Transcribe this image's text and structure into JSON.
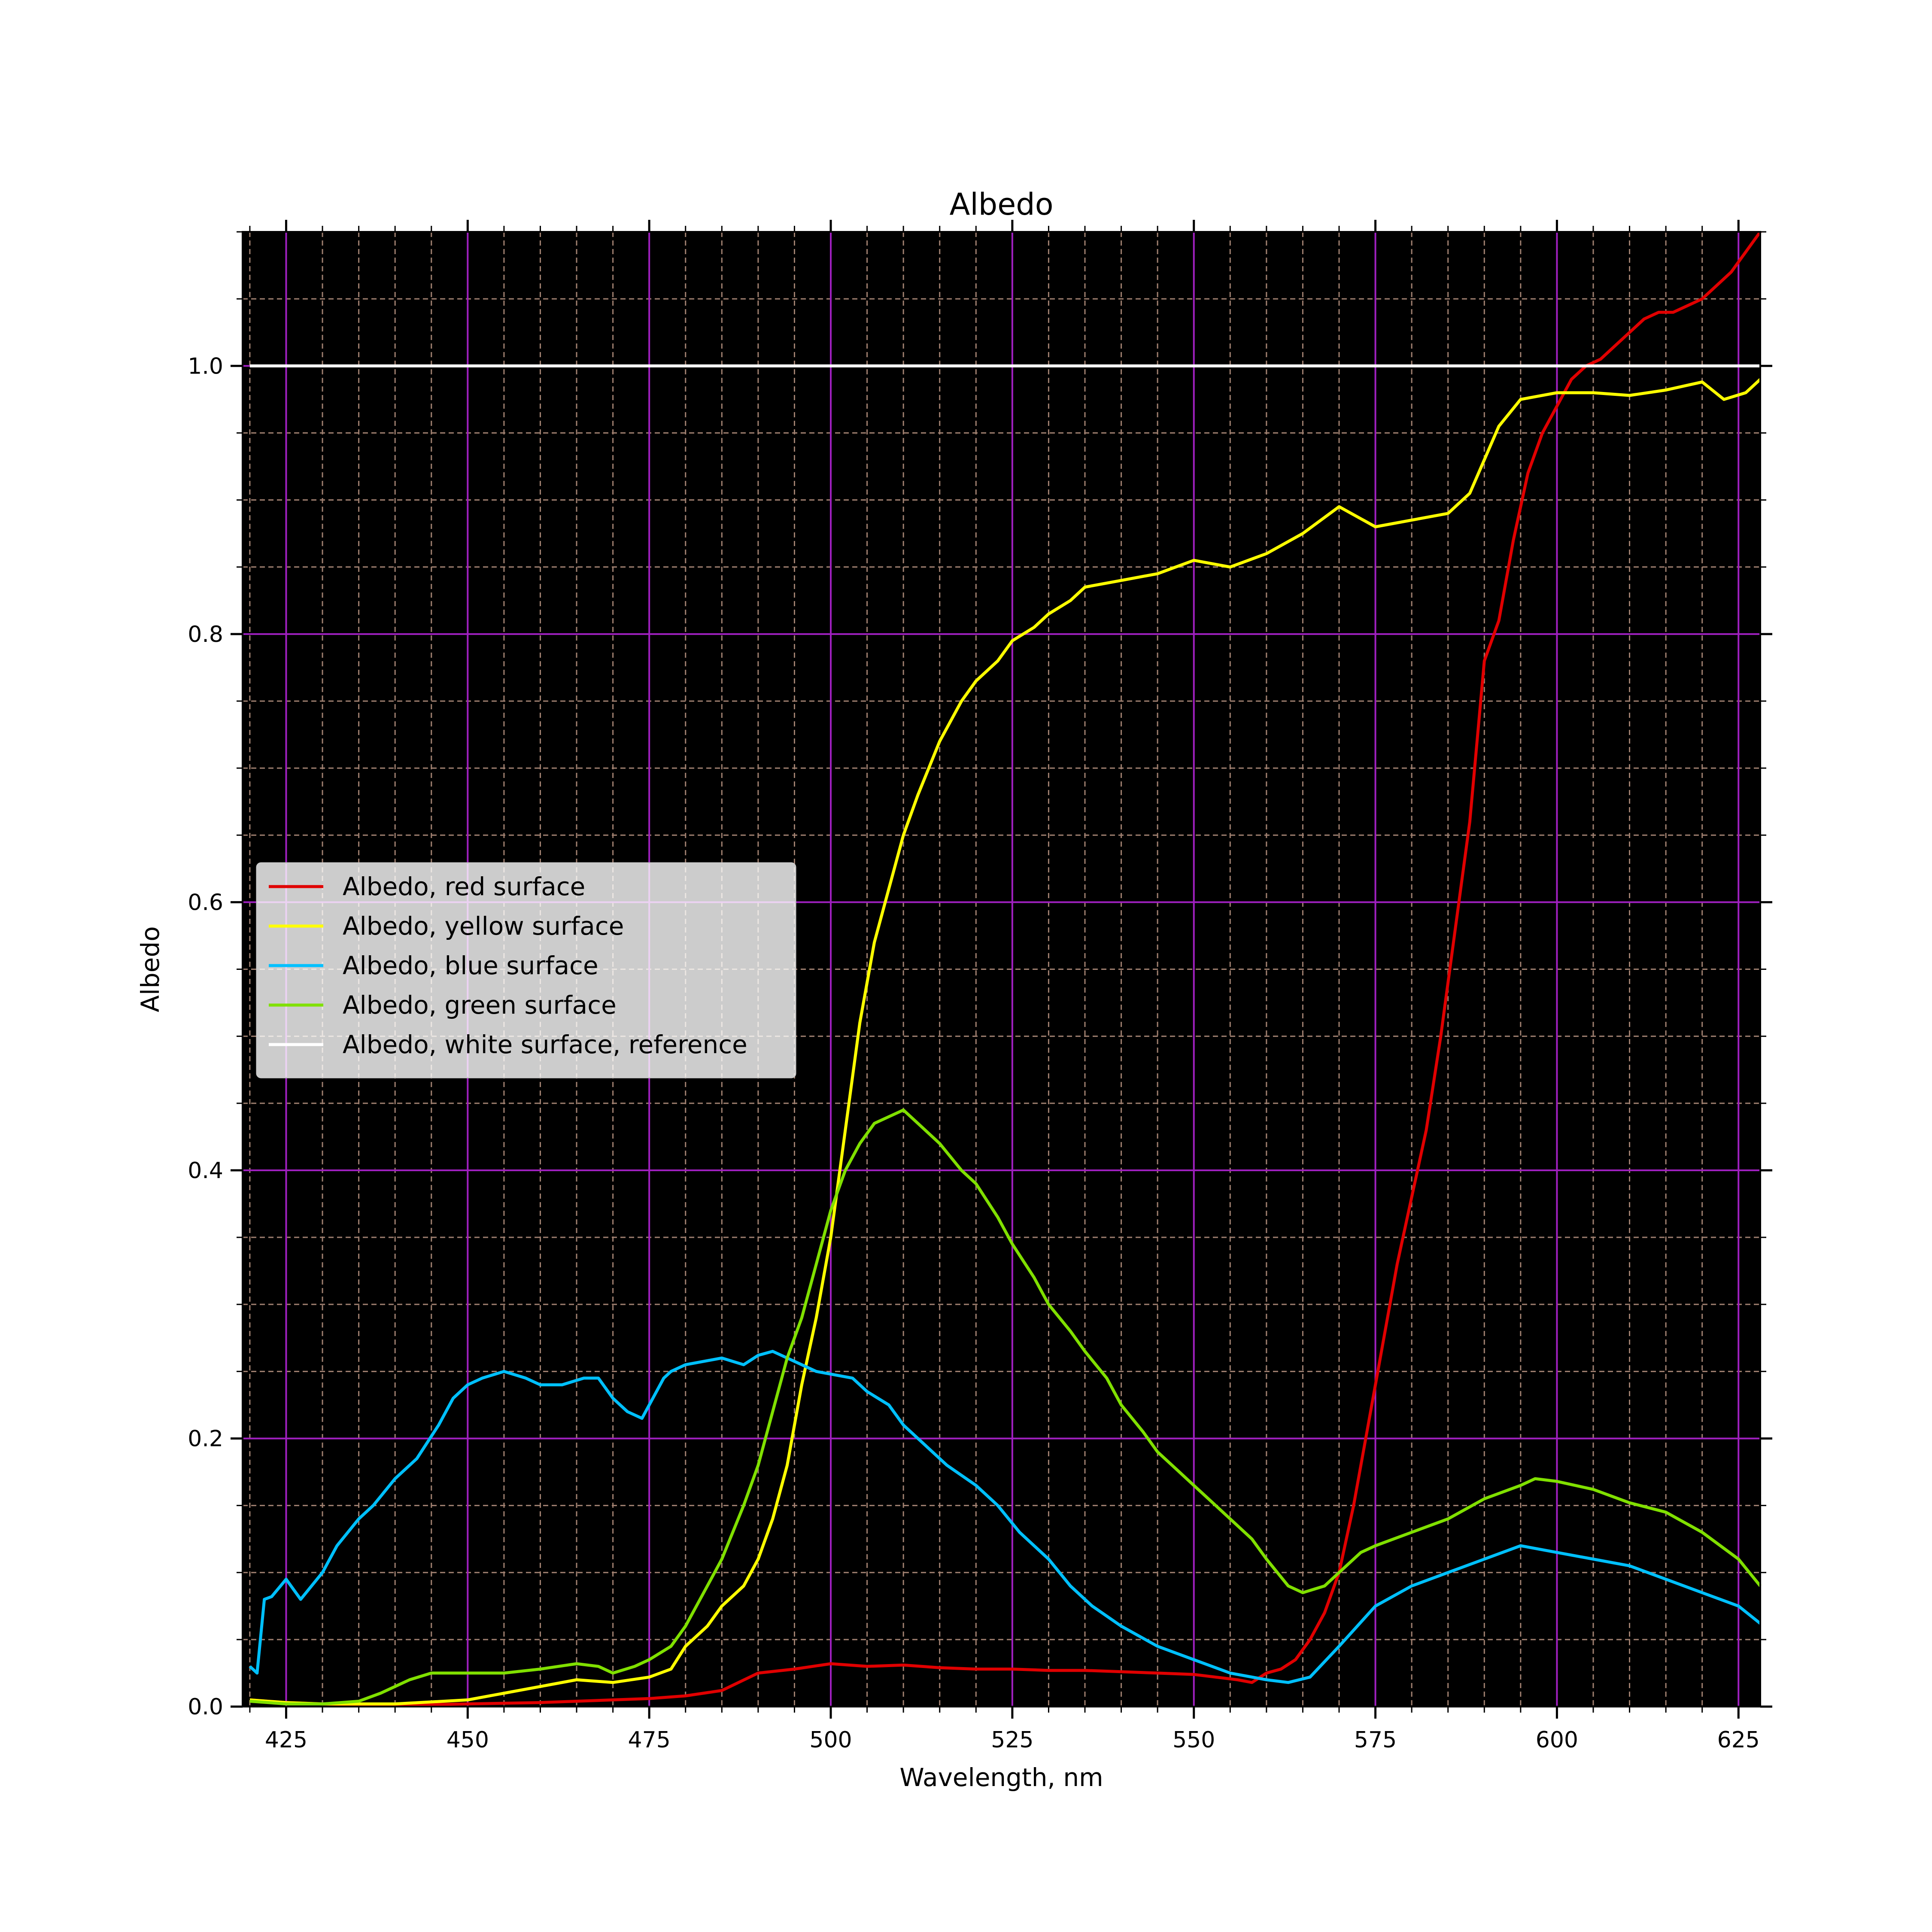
{
  "chart_data": {
    "type": "line",
    "title": "Albedo",
    "xlabel": "Wavelength, nm",
    "ylabel": "Albedo",
    "xlim": [
      419,
      628
    ],
    "ylim": [
      0.0,
      1.1
    ],
    "xticks": [
      {
        "v": 425,
        "label": "425"
      },
      {
        "v": 450,
        "label": "450"
      },
      {
        "v": 475,
        "label": "475"
      },
      {
        "v": 500,
        "label": "500"
      },
      {
        "v": 525,
        "label": "525"
      },
      {
        "v": 550,
        "label": "550"
      },
      {
        "v": 575,
        "label": "575"
      },
      {
        "v": 600,
        "label": "600"
      },
      {
        "v": 625,
        "label": "625"
      }
    ],
    "yticks": [
      {
        "v": 0.0,
        "label": "0.0"
      },
      {
        "v": 0.2,
        "label": "0.2"
      },
      {
        "v": 0.4,
        "label": "0.4"
      },
      {
        "v": 0.6,
        "label": "0.6"
      },
      {
        "v": 0.8,
        "label": "0.8"
      },
      {
        "v": 1.0,
        "label": "1.0"
      }
    ],
    "x_minor_step": 5,
    "y_minor_step": 0.05,
    "grid": true,
    "plot_background": "#000000",
    "major_grid_color": "#a020c0",
    "minor_grid_color": "#a08070",
    "legend_position": "center-left",
    "series": [
      {
        "name": "Albedo, red surface",
        "color": "#e00000",
        "x": [
          420,
          425,
          430,
          440,
          450,
          460,
          465,
          470,
          475,
          480,
          485,
          490,
          495,
          500,
          505,
          510,
          515,
          520,
          525,
          530,
          535,
          540,
          545,
          550,
          553,
          556,
          558,
          560,
          562,
          564,
          566,
          568,
          570,
          572,
          574,
          576,
          578,
          580,
          582,
          584,
          586,
          588,
          590,
          592,
          594,
          596,
          598,
          600,
          602,
          604,
          606,
          608,
          610,
          612,
          614,
          616,
          618,
          620,
          622,
          624,
          626,
          628
        ],
        "y": [
          0.005,
          0.003,
          0.002,
          0.001,
          0.002,
          0.003,
          0.004,
          0.005,
          0.006,
          0.008,
          0.012,
          0.025,
          0.028,
          0.032,
          0.03,
          0.031,
          0.029,
          0.028,
          0.028,
          0.027,
          0.027,
          0.026,
          0.025,
          0.024,
          0.022,
          0.02,
          0.018,
          0.025,
          0.028,
          0.035,
          0.05,
          0.07,
          0.1,
          0.15,
          0.21,
          0.27,
          0.33,
          0.38,
          0.43,
          0.5,
          0.58,
          0.66,
          0.78,
          0.81,
          0.87,
          0.92,
          0.95,
          0.97,
          0.99,
          1.0,
          1.005,
          1.015,
          1.025,
          1.035,
          1.04,
          1.04,
          1.045,
          1.05,
          1.06,
          1.07,
          1.085,
          1.1
        ]
      },
      {
        "name": "Albedo, yellow surface",
        "color": "#ffff00",
        "x": [
          420,
          425,
          430,
          440,
          450,
          455,
          460,
          465,
          470,
          475,
          478,
          480,
          483,
          485,
          488,
          490,
          492,
          494,
          496,
          498,
          500,
          502,
          504,
          506,
          508,
          510,
          512,
          515,
          518,
          520,
          523,
          525,
          528,
          530,
          533,
          535,
          540,
          545,
          550,
          555,
          560,
          565,
          570,
          575,
          580,
          585,
          588,
          590,
          592,
          595,
          600,
          605,
          610,
          615,
          620,
          623,
          626,
          628
        ],
        "y": [
          0.005,
          0.003,
          0.002,
          0.002,
          0.005,
          0.01,
          0.015,
          0.02,
          0.018,
          0.022,
          0.028,
          0.045,
          0.06,
          0.075,
          0.09,
          0.11,
          0.14,
          0.18,
          0.24,
          0.29,
          0.35,
          0.43,
          0.51,
          0.57,
          0.61,
          0.65,
          0.68,
          0.72,
          0.75,
          0.765,
          0.78,
          0.795,
          0.805,
          0.815,
          0.825,
          0.835,
          0.84,
          0.845,
          0.855,
          0.85,
          0.86,
          0.875,
          0.895,
          0.88,
          0.885,
          0.89,
          0.905,
          0.93,
          0.955,
          0.975,
          0.98,
          0.98,
          0.978,
          0.982,
          0.988,
          0.975,
          0.98,
          0.99
        ]
      },
      {
        "name": "Albedo, blue surface",
        "color": "#00c0ff",
        "x": [
          420,
          421,
          422,
          423,
          425,
          427,
          430,
          432,
          435,
          437,
          440,
          443,
          446,
          448,
          450,
          452,
          455,
          458,
          460,
          463,
          466,
          468,
          470,
          472,
          474,
          475,
          477,
          478,
          480,
          483,
          485,
          488,
          490,
          492,
          494,
          496,
          498,
          500,
          503,
          505,
          508,
          510,
          513,
          516,
          520,
          523,
          526,
          530,
          533,
          536,
          540,
          545,
          550,
          555,
          560,
          563,
          566,
          570,
          575,
          580,
          585,
          590,
          595,
          600,
          605,
          610,
          615,
          620,
          625,
          628
        ],
        "y": [
          0.03,
          0.025,
          0.08,
          0.082,
          0.095,
          0.08,
          0.1,
          0.12,
          0.14,
          0.15,
          0.17,
          0.185,
          0.21,
          0.23,
          0.24,
          0.245,
          0.25,
          0.245,
          0.24,
          0.24,
          0.245,
          0.245,
          0.23,
          0.22,
          0.215,
          0.225,
          0.245,
          0.25,
          0.255,
          0.258,
          0.26,
          0.255,
          0.262,
          0.265,
          0.26,
          0.255,
          0.25,
          0.248,
          0.245,
          0.235,
          0.225,
          0.21,
          0.195,
          0.18,
          0.165,
          0.15,
          0.13,
          0.11,
          0.09,
          0.075,
          0.06,
          0.045,
          0.035,
          0.025,
          0.02,
          0.018,
          0.022,
          0.045,
          0.075,
          0.09,
          0.1,
          0.11,
          0.12,
          0.115,
          0.11,
          0.105,
          0.095,
          0.085,
          0.075,
          0.062
        ]
      },
      {
        "name": "Albedo, green surface",
        "color": "#80e000",
        "x": [
          420,
          425,
          430,
          435,
          438,
          440,
          442,
          445,
          448,
          450,
          455,
          460,
          465,
          468,
          470,
          473,
          475,
          478,
          480,
          483,
          485,
          488,
          490,
          492,
          494,
          496,
          498,
          500,
          502,
          504,
          506,
          508,
          510,
          512,
          515,
          518,
          520,
          523,
          525,
          528,
          530,
          533,
          535,
          538,
          540,
          543,
          545,
          548,
          550,
          553,
          555,
          558,
          560,
          563,
          565,
          568,
          570,
          573,
          575,
          580,
          585,
          590,
          595,
          597,
          600,
          605,
          610,
          615,
          620,
          625,
          628
        ],
        "y": [
          0.004,
          0.002,
          0.002,
          0.004,
          0.01,
          0.015,
          0.02,
          0.025,
          0.025,
          0.025,
          0.025,
          0.028,
          0.032,
          0.03,
          0.025,
          0.03,
          0.035,
          0.045,
          0.06,
          0.09,
          0.11,
          0.15,
          0.18,
          0.22,
          0.26,
          0.29,
          0.33,
          0.37,
          0.4,
          0.42,
          0.435,
          0.44,
          0.445,
          0.435,
          0.42,
          0.4,
          0.39,
          0.365,
          0.345,
          0.32,
          0.3,
          0.28,
          0.265,
          0.245,
          0.225,
          0.205,
          0.19,
          0.175,
          0.165,
          0.15,
          0.14,
          0.125,
          0.11,
          0.09,
          0.085,
          0.09,
          0.1,
          0.115,
          0.12,
          0.13,
          0.14,
          0.155,
          0.165,
          0.17,
          0.168,
          0.162,
          0.152,
          0.145,
          0.13,
          0.11,
          0.09
        ]
      },
      {
        "name": "Albedo, white surface, reference",
        "color": "#ffffff",
        "x": [
          420,
          628
        ],
        "y": [
          1.0,
          1.0
        ]
      }
    ]
  }
}
